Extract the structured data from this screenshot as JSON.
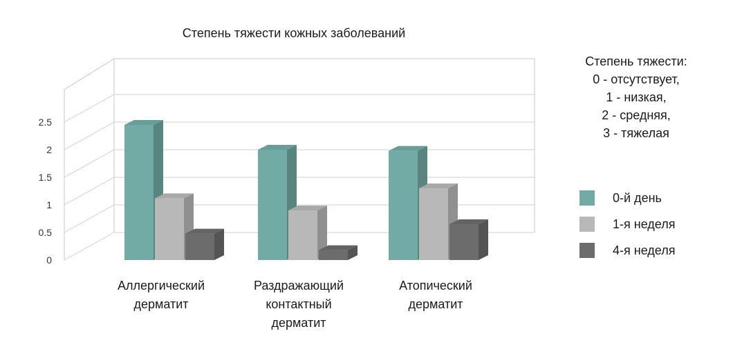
{
  "chart_data": {
    "type": "bar",
    "title": "Степень тяжести кожных заболеваний",
    "categories": [
      [
        "Аллергический",
        "дерматит"
      ],
      [
        "Раздражающий",
        "контактный",
        "дерматит"
      ],
      [
        "Атопический",
        "дерматит"
      ]
    ],
    "series": [
      {
        "name": "0-й день",
        "values": [
          2.45,
          2.0,
          1.98
        ],
        "color": "#72aba5"
      },
      {
        "name": "1-я неделя",
        "values": [
          1.12,
          0.9,
          1.3
        ],
        "color": "#b8b8b8"
      },
      {
        "name": "4-я неделя",
        "values": [
          0.48,
          0.18,
          0.65
        ],
        "color": "#6c6c6c"
      }
    ],
    "y_ticks": [
      "0",
      "0.5",
      "1",
      "1.5",
      "2",
      "2.5"
    ],
    "ylim": [
      0,
      3
    ],
    "grid": true,
    "legend_placement": "right"
  },
  "note": {
    "lines": [
      "Степень тяжести:",
      "0 - отсутствует,",
      "1 - низкая,",
      "2 - средняя,",
      "3 - тяжелая"
    ]
  }
}
